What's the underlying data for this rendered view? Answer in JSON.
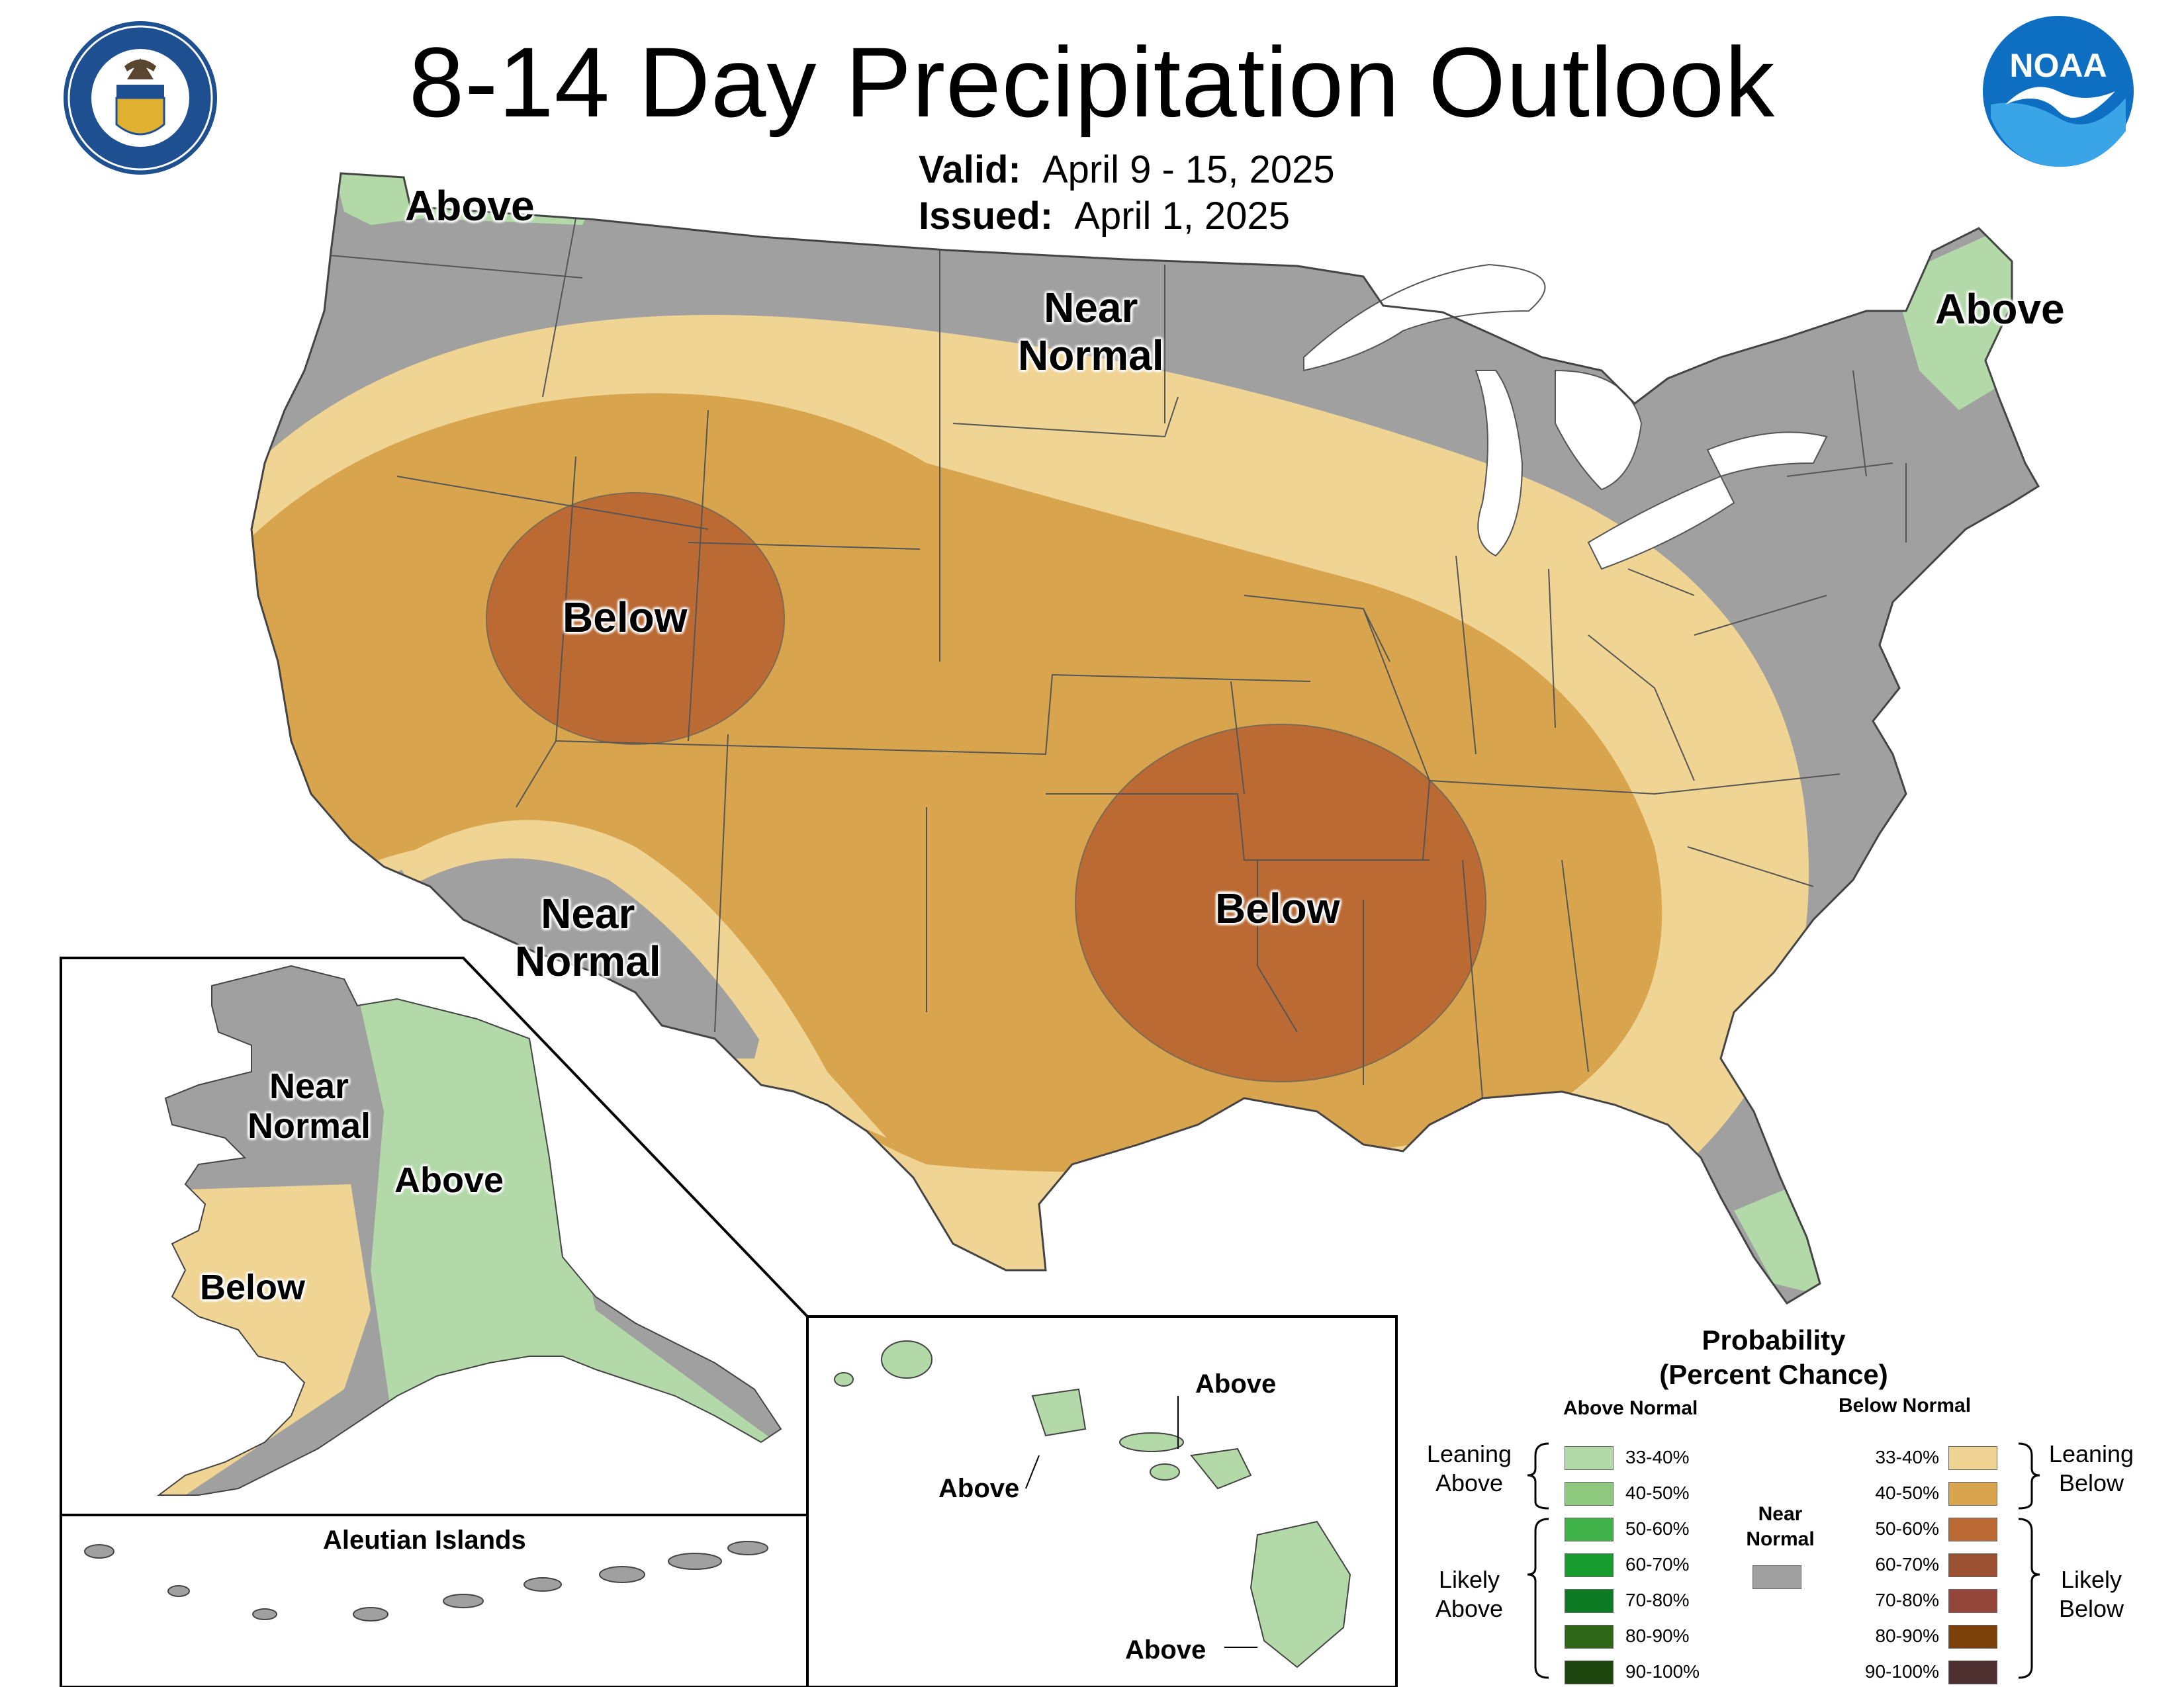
{
  "title": "8-14 Day Precipitation Outlook",
  "valid_label": "Valid:",
  "valid_value": "April 9 - 15, 2025",
  "issued_label": "Issued:",
  "issued_value": "April 1, 2025",
  "logos": {
    "commerce": "department-of-commerce-seal",
    "noaa": "noaa-logo",
    "noaa_text": "NOAA"
  },
  "map_labels": {
    "nw_above": "Above",
    "north_near": [
      "Near",
      "Normal"
    ],
    "ne_above": "Above",
    "west_below": "Below",
    "sw_near": [
      "Near",
      "Normal"
    ],
    "south_below": "Below",
    "ak_near": [
      "Near",
      "Normal"
    ],
    "ak_above": "Above",
    "ak_below": "Below",
    "aleutian": "Aleutian Islands",
    "hi_above_1": "Above",
    "hi_above_2": "Above",
    "hi_above_3": "Above"
  },
  "legend": {
    "title": [
      "Probability",
      "(Percent Chance)"
    ],
    "above_header": "Above Normal",
    "below_header": "Below Normal",
    "near_header": [
      "Near",
      "Normal"
    ],
    "leaning_above": [
      "Leaning",
      "Above"
    ],
    "likely_above": [
      "Likely",
      "Above"
    ],
    "leaning_below": [
      "Leaning",
      "Below"
    ],
    "likely_below": [
      "Likely",
      "Below"
    ],
    "above": [
      {
        "range": "33-40%",
        "color": "#b3d9a9"
      },
      {
        "range": "40-50%",
        "color": "#8ec97f"
      },
      {
        "range": "50-60%",
        "color": "#3fb24a"
      },
      {
        "range": "60-70%",
        "color": "#199c2f"
      },
      {
        "range": "70-80%",
        "color": "#0b7a23"
      },
      {
        "range": "80-90%",
        "color": "#2e6718"
      },
      {
        "range": "90-100%",
        "color": "#1e4710"
      }
    ],
    "below": [
      {
        "range": "33-40%",
        "color": "#f0d493"
      },
      {
        "range": "40-50%",
        "color": "#d8a54e"
      },
      {
        "range": "50-60%",
        "color": "#bb6a33"
      },
      {
        "range": "60-70%",
        "color": "#9b5031"
      },
      {
        "range": "70-80%",
        "color": "#934639"
      },
      {
        "range": "80-90%",
        "color": "#7c4109"
      },
      {
        "range": "90-100%",
        "color": "#4e3030"
      }
    ],
    "near_color": "#a0a0a0"
  },
  "colors": {
    "near": "#a0a0a0",
    "lean_above": "#b3d9a9",
    "lean_below": "#f0d493",
    "below_40_50": "#d8a54e",
    "below_50_60": "#bb6a33",
    "lake": "#ffffff"
  }
}
